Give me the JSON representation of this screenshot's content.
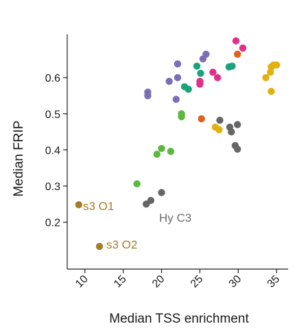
{
  "chart_data": {
    "type": "scatter",
    "title": "",
    "xlabel": "Median TSS enrichment",
    "ylabel": "Median FRIP",
    "xlim": [
      7.7,
      36.5
    ],
    "ylim": [
      0.07,
      0.72
    ],
    "xticks": [
      10,
      15,
      20,
      25,
      30,
      35
    ],
    "yticks": [
      0.2,
      0.3,
      0.4,
      0.5,
      0.6
    ],
    "ytick_labels": [
      "0.2",
      "0.3",
      "0.4",
      "0.5",
      "0.6"
    ],
    "grid": false,
    "colors": {
      "purple": "#7b6db7",
      "teal": "#1aa37a",
      "magenta": "#e0308a",
      "orange": "#e0601c",
      "gold": "#e3b10f",
      "gray": "#666666",
      "green": "#5cb83c",
      "brown": "#a57c28"
    },
    "points": [
      {
        "x": 9.2,
        "y": 0.248,
        "color": "brown"
      },
      {
        "x": 11.9,
        "y": 0.133,
        "color": "brown"
      },
      {
        "x": 16.8,
        "y": 0.306,
        "color": "green"
      },
      {
        "x": 19.4,
        "y": 0.388,
        "color": "green"
      },
      {
        "x": 20.0,
        "y": 0.404,
        "color": "green"
      },
      {
        "x": 21.2,
        "y": 0.396,
        "color": "green"
      },
      {
        "x": 22.6,
        "y": 0.492,
        "color": "green"
      },
      {
        "x": 22.6,
        "y": 0.5,
        "color": "green"
      },
      {
        "x": 18.0,
        "y": 0.25,
        "color": "gray"
      },
      {
        "x": 18.6,
        "y": 0.26,
        "color": "gray"
      },
      {
        "x": 20.0,
        "y": 0.282,
        "color": "gray"
      },
      {
        "x": 27.6,
        "y": 0.482,
        "color": "gray"
      },
      {
        "x": 28.9,
        "y": 0.463,
        "color": "gray"
      },
      {
        "x": 29.1,
        "y": 0.45,
        "color": "gray"
      },
      {
        "x": 29.9,
        "y": 0.47,
        "color": "gray"
      },
      {
        "x": 29.6,
        "y": 0.412,
        "color": "gray"
      },
      {
        "x": 29.9,
        "y": 0.402,
        "color": "gray"
      },
      {
        "x": 18.2,
        "y": 0.55,
        "color": "purple"
      },
      {
        "x": 18.2,
        "y": 0.56,
        "color": "purple"
      },
      {
        "x": 21.0,
        "y": 0.59,
        "color": "purple"
      },
      {
        "x": 21.9,
        "y": 0.54,
        "color": "purple"
      },
      {
        "x": 22.1,
        "y": 0.6,
        "color": "purple"
      },
      {
        "x": 22.1,
        "y": 0.638,
        "color": "purple"
      },
      {
        "x": 25.4,
        "y": 0.652,
        "color": "purple"
      },
      {
        "x": 25.8,
        "y": 0.665,
        "color": "purple"
      },
      {
        "x": 23.0,
        "y": 0.575,
        "color": "teal"
      },
      {
        "x": 23.5,
        "y": 0.568,
        "color": "teal"
      },
      {
        "x": 24.6,
        "y": 0.632,
        "color": "teal"
      },
      {
        "x": 25.1,
        "y": 0.612,
        "color": "teal"
      },
      {
        "x": 28.8,
        "y": 0.63,
        "color": "teal"
      },
      {
        "x": 29.2,
        "y": 0.632,
        "color": "teal"
      },
      {
        "x": 25.0,
        "y": 0.582,
        "color": "magenta"
      },
      {
        "x": 25.0,
        "y": 0.59,
        "color": "magenta"
      },
      {
        "x": 26.7,
        "y": 0.615,
        "color": "magenta"
      },
      {
        "x": 27.3,
        "y": 0.6,
        "color": "magenta"
      },
      {
        "x": 29.7,
        "y": 0.702,
        "color": "magenta"
      },
      {
        "x": 30.6,
        "y": 0.682,
        "color": "magenta"
      },
      {
        "x": 25.2,
        "y": 0.486,
        "color": "orange"
      },
      {
        "x": 29.9,
        "y": 0.665,
        "color": "orange"
      },
      {
        "x": 27.0,
        "y": 0.463,
        "color": "gold"
      },
      {
        "x": 27.5,
        "y": 0.456,
        "color": "gold"
      },
      {
        "x": 33.6,
        "y": 0.6,
        "color": "gold"
      },
      {
        "x": 34.2,
        "y": 0.615,
        "color": "gold"
      },
      {
        "x": 34.3,
        "y": 0.63,
        "color": "gold"
      },
      {
        "x": 34.6,
        "y": 0.635,
        "color": "gold"
      },
      {
        "x": 35.0,
        "y": 0.635,
        "color": "gold"
      },
      {
        "x": 34.3,
        "y": 0.562,
        "color": "gold"
      }
    ],
    "annotations": [
      {
        "text": "s3 O1",
        "color": "brown"
      },
      {
        "text": "s3 O2",
        "color": "brown"
      },
      {
        "text": "Hy C3",
        "color": "gray"
      }
    ]
  }
}
